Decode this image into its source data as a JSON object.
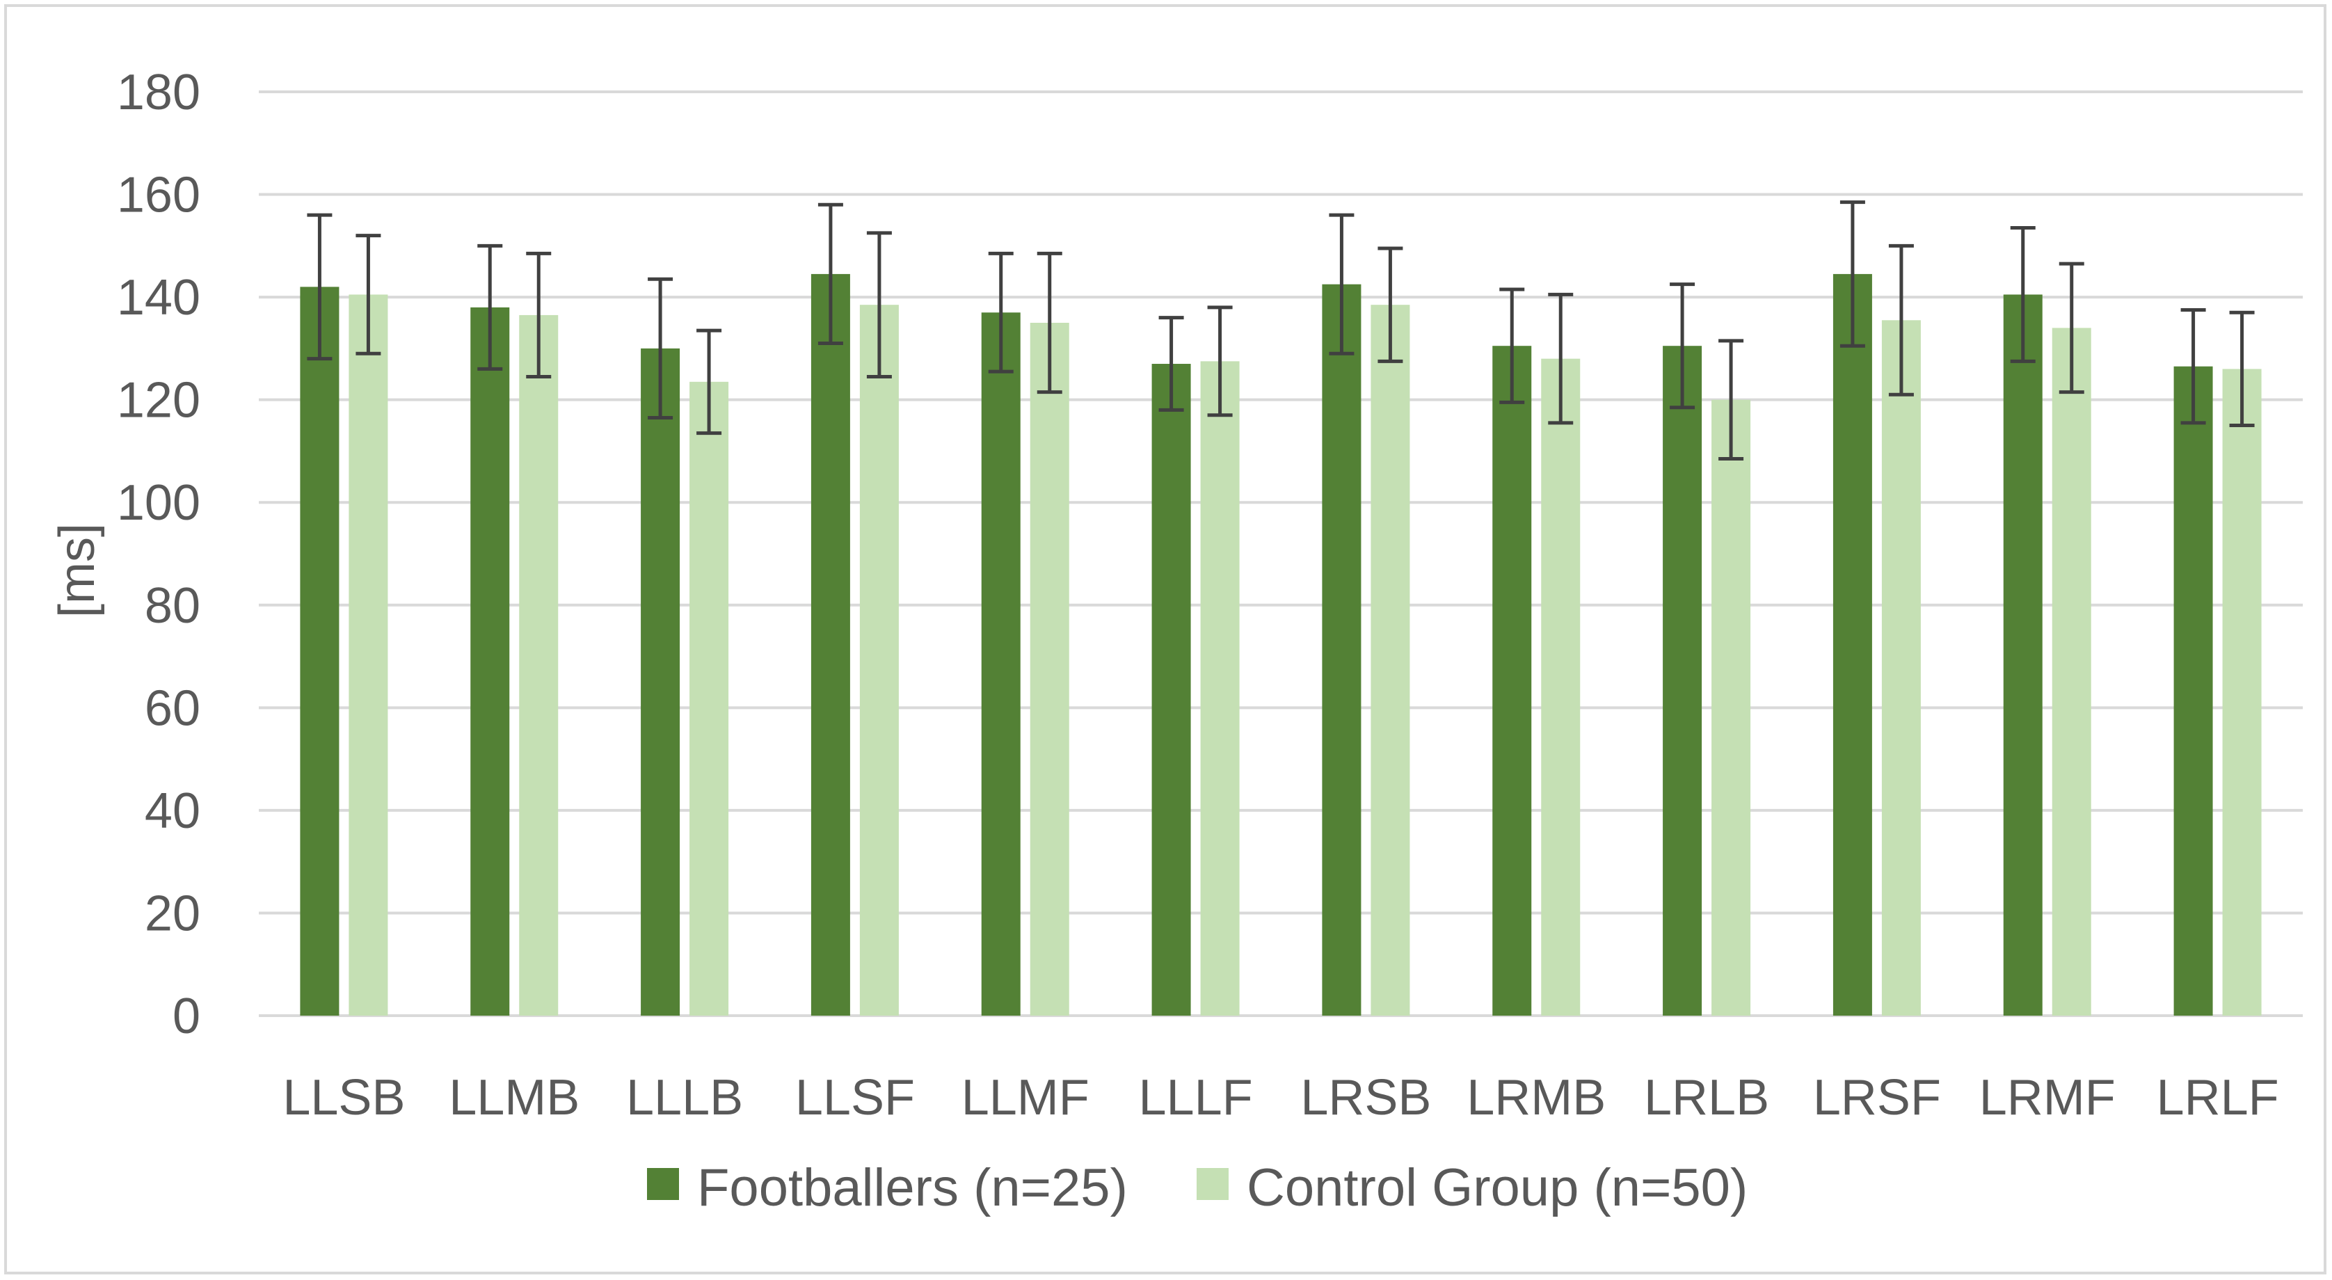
{
  "chart_data": {
    "type": "bar",
    "title": "",
    "xlabel": "",
    "ylabel": "[ms]",
    "ylim": [
      0,
      180
    ],
    "yticks": [
      0,
      20,
      40,
      60,
      80,
      100,
      120,
      140,
      160,
      180
    ],
    "grid": true,
    "legend_position": "bottom",
    "categories": [
      "LLSB",
      "LLMB",
      "LLLB",
      "LLSF",
      "LLMF",
      "LLLF",
      "LRSB",
      "LRMB",
      "LRLB",
      "LRSF",
      "LRMF",
      "LRLF"
    ],
    "series": [
      {
        "name": "Footballers (n=25)",
        "color": "#538135",
        "values": [
          142,
          138,
          130,
          144.5,
          137,
          127,
          142.5,
          130.5,
          130.5,
          144.5,
          140.5,
          126.5
        ],
        "error": [
          14,
          12,
          13.5,
          13.5,
          11.5,
          9,
          13.5,
          11,
          12,
          14,
          13,
          11
        ]
      },
      {
        "name": "Control Group (n=50)",
        "color": "#c5e0b4",
        "values": [
          140.5,
          136.5,
          123.5,
          138.5,
          135,
          127.5,
          138.5,
          128,
          120,
          135.5,
          134,
          126
        ],
        "error": [
          11.5,
          12,
          10,
          14,
          13.5,
          10.5,
          11,
          12.5,
          11.5,
          14.5,
          12.5,
          11
        ]
      }
    ]
  }
}
